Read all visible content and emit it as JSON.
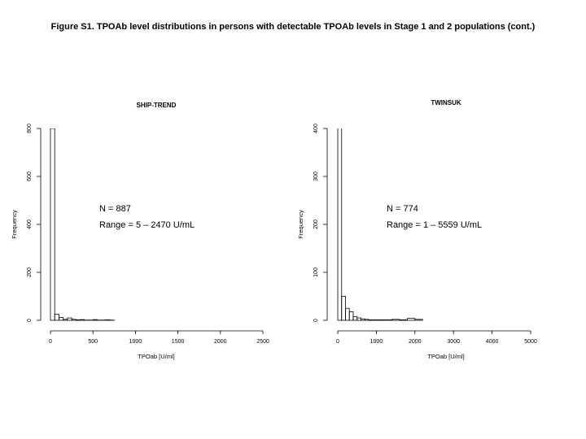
{
  "figure_title": "Figure S1. TPOAb level distributions in persons with detectable TPOAb levels in Stage 1 and 2 populations (cont.)",
  "chart_data": [
    {
      "type": "bar",
      "title": "SHIP-TREND",
      "xlabel": "TPOab [U/ml]",
      "ylabel": "Frequency",
      "xlim": [
        0,
        2500
      ],
      "ylim": [
        0,
        800
      ],
      "xticks": [
        "0",
        "500",
        "1000",
        "1500",
        "2000",
        "2500"
      ],
      "yticks": [
        "0",
        "200",
        "400",
        "600",
        "800"
      ],
      "bins": [
        [
          0,
          50
        ],
        [
          50,
          100
        ],
        [
          100,
          150
        ],
        [
          150,
          200
        ],
        [
          200,
          250
        ],
        [
          250,
          300
        ],
        [
          300,
          350
        ],
        [
          350,
          400
        ],
        [
          400,
          450
        ],
        [
          450,
          500
        ],
        [
          500,
          550
        ],
        [
          550,
          600
        ],
        [
          600,
          650
        ],
        [
          650,
          700
        ],
        [
          700,
          750
        ]
      ],
      "values": [
        800,
        25,
        12,
        4,
        10,
        4,
        2,
        3,
        1,
        1,
        3,
        1,
        1,
        2,
        1
      ],
      "annotations": [
        "N = 887",
        "Range = 5 – 2470 U/mL"
      ]
    },
    {
      "type": "bar",
      "title": "TWINSUK",
      "xlabel": "TPOab [U/ml]",
      "ylabel": "Frequency",
      "xlim": [
        0,
        5000
      ],
      "ylim": [
        0,
        400
      ],
      "xticks": [
        "0",
        "1000",
        "2000",
        "3000",
        "4000",
        "5000"
      ],
      "yticks": [
        "0",
        "100",
        "200",
        "300",
        "400"
      ],
      "bins": [
        [
          0,
          100
        ],
        [
          100,
          200
        ],
        [
          200,
          300
        ],
        [
          300,
          400
        ],
        [
          400,
          500
        ],
        [
          500,
          600
        ],
        [
          600,
          700
        ],
        [
          700,
          800
        ],
        [
          800,
          900
        ],
        [
          900,
          1000
        ],
        [
          1000,
          1200
        ],
        [
          1200,
          1400
        ],
        [
          1400,
          1600
        ],
        [
          1600,
          1800
        ],
        [
          1800,
          2000
        ],
        [
          2000,
          2200
        ]
      ],
      "values": [
        450,
        50,
        25,
        18,
        8,
        5,
        3,
        2,
        1,
        1,
        1,
        1,
        2,
        1,
        4,
        2
      ],
      "annotations": [
        "N = 774",
        "Range = 1 – 5559 U/mL"
      ]
    }
  ]
}
